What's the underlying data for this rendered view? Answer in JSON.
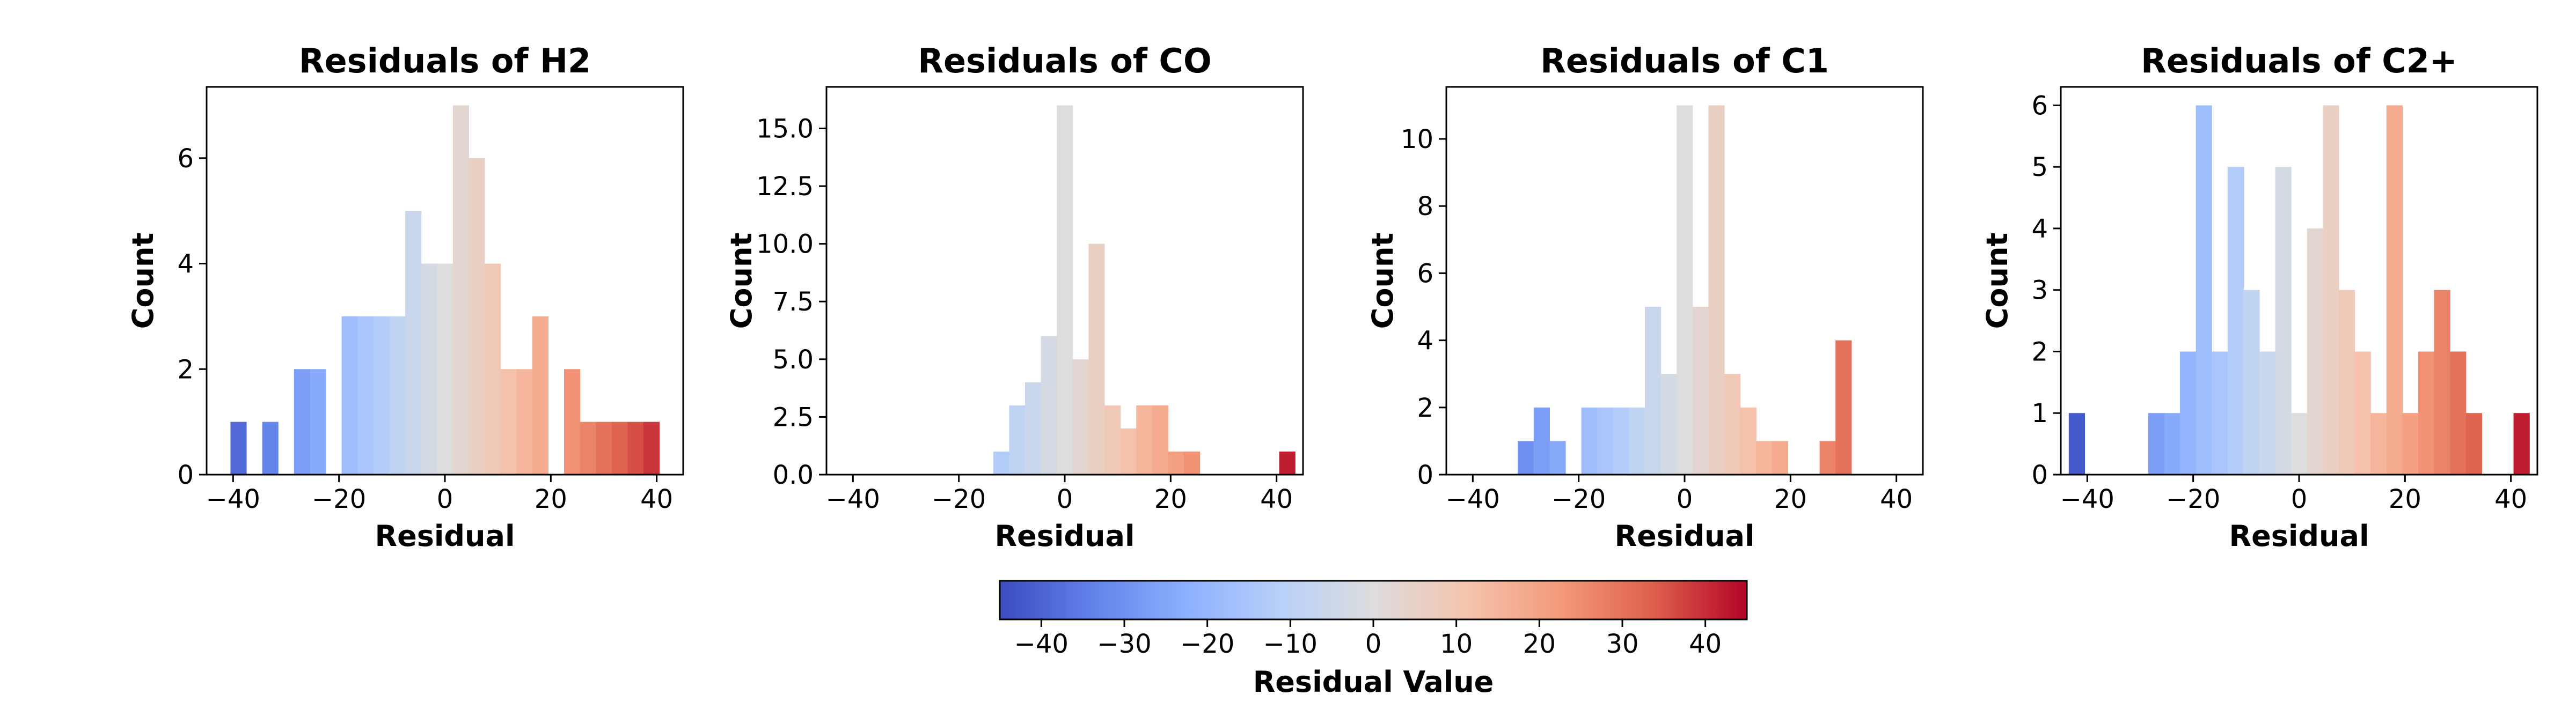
{
  "chart_data": [
    {
      "type": "bar",
      "title": "Residuals of H2",
      "xlabel": "Residual",
      "ylabel": "Count",
      "xlim": [
        -45,
        45
      ],
      "ylim": [
        0,
        7.35
      ],
      "xticks": [
        -40,
        -20,
        0,
        20,
        40
      ],
      "yticks": [
        0,
        2,
        4,
        6
      ],
      "ytick_labels": [
        "0",
        "2",
        "4",
        "6"
      ],
      "bin_width": 3,
      "bins": [
        {
          "x": -39.0,
          "count": 1
        },
        {
          "x": -33.0,
          "count": 1
        },
        {
          "x": -27.0,
          "count": 2
        },
        {
          "x": -24.0,
          "count": 2
        },
        {
          "x": -18.0,
          "count": 3
        },
        {
          "x": -15.0,
          "count": 3
        },
        {
          "x": -12.0,
          "count": 3
        },
        {
          "x": -9.0,
          "count": 3
        },
        {
          "x": -6.0,
          "count": 5
        },
        {
          "x": -3.0,
          "count": 4
        },
        {
          "x": 0.0,
          "count": 4
        },
        {
          "x": 3.0,
          "count": 7
        },
        {
          "x": 6.0,
          "count": 6
        },
        {
          "x": 9.0,
          "count": 4
        },
        {
          "x": 12.0,
          "count": 2
        },
        {
          "x": 15.0,
          "count": 2
        },
        {
          "x": 18.0,
          "count": 3
        },
        {
          "x": 24.0,
          "count": 2
        },
        {
          "x": 27.0,
          "count": 1
        },
        {
          "x": 30.0,
          "count": 1
        },
        {
          "x": 33.0,
          "count": 1
        },
        {
          "x": 36.0,
          "count": 1
        },
        {
          "x": 39.0,
          "count": 1
        }
      ]
    },
    {
      "type": "bar",
      "title": "Residuals of CO",
      "xlabel": "Residual",
      "ylabel": "Count",
      "xlim": [
        -45,
        45
      ],
      "ylim": [
        0,
        16.8
      ],
      "xticks": [
        -40,
        -20,
        0,
        20,
        40
      ],
      "yticks": [
        0,
        2.5,
        5,
        7.5,
        10,
        12.5,
        15
      ],
      "ytick_labels": [
        "0.0",
        "2.5",
        "5.0",
        "7.5",
        "10.0",
        "12.5",
        "15.0"
      ],
      "bin_width": 3,
      "bins": [
        {
          "x": -12.0,
          "count": 1
        },
        {
          "x": -9.0,
          "count": 3
        },
        {
          "x": -6.0,
          "count": 4
        },
        {
          "x": -3.0,
          "count": 6
        },
        {
          "x": 0.0,
          "count": 16
        },
        {
          "x": 3.0,
          "count": 5
        },
        {
          "x": 6.0,
          "count": 10
        },
        {
          "x": 9.0,
          "count": 3
        },
        {
          "x": 12.0,
          "count": 2
        },
        {
          "x": 15.0,
          "count": 3
        },
        {
          "x": 18.0,
          "count": 3
        },
        {
          "x": 21.0,
          "count": 1
        },
        {
          "x": 24.0,
          "count": 1
        },
        {
          "x": 42.0,
          "count": 1
        }
      ]
    },
    {
      "type": "bar",
      "title": "Residuals of C1",
      "xlabel": "Residual",
      "ylabel": "Count",
      "xlim": [
        -45,
        45
      ],
      "ylim": [
        0,
        11.55
      ],
      "xticks": [
        -40,
        -20,
        0,
        20,
        40
      ],
      "yticks": [
        0,
        2,
        4,
        6,
        8,
        10
      ],
      "ytick_labels": [
        "0",
        "2",
        "4",
        "6",
        "8",
        "10"
      ],
      "bin_width": 3,
      "bins": [
        {
          "x": -30.0,
          "count": 1
        },
        {
          "x": -27.0,
          "count": 2
        },
        {
          "x": -24.0,
          "count": 1
        },
        {
          "x": -18.0,
          "count": 2
        },
        {
          "x": -15.0,
          "count": 2
        },
        {
          "x": -12.0,
          "count": 2
        },
        {
          "x": -9.0,
          "count": 2
        },
        {
          "x": -6.0,
          "count": 5
        },
        {
          "x": -3.0,
          "count": 3
        },
        {
          "x": 0.0,
          "count": 11
        },
        {
          "x": 3.0,
          "count": 5
        },
        {
          "x": 6.0,
          "count": 11
        },
        {
          "x": 9.0,
          "count": 3
        },
        {
          "x": 12.0,
          "count": 2
        },
        {
          "x": 15.0,
          "count": 1
        },
        {
          "x": 18.0,
          "count": 1
        },
        {
          "x": 27.0,
          "count": 1
        },
        {
          "x": 30.0,
          "count": 4
        }
      ]
    },
    {
      "type": "bar",
      "title": "Residuals of C2+",
      "xlabel": "Residual",
      "ylabel": "Count",
      "xlim": [
        -45,
        45
      ],
      "ylim": [
        0,
        6.3
      ],
      "xticks": [
        -40,
        -20,
        0,
        20,
        40
      ],
      "yticks": [
        0,
        1,
        2,
        3,
        4,
        5,
        6
      ],
      "ytick_labels": [
        "0",
        "1",
        "2",
        "3",
        "4",
        "5",
        "6"
      ],
      "bin_width": 3,
      "bins": [
        {
          "x": -42.0,
          "count": 1
        },
        {
          "x": -27.0,
          "count": 1
        },
        {
          "x": -24.0,
          "count": 1
        },
        {
          "x": -21.0,
          "count": 2
        },
        {
          "x": -18.0,
          "count": 6
        },
        {
          "x": -15.0,
          "count": 2
        },
        {
          "x": -12.0,
          "count": 5
        },
        {
          "x": -9.0,
          "count": 3
        },
        {
          "x": -6.0,
          "count": 2
        },
        {
          "x": -3.0,
          "count": 5
        },
        {
          "x": 0.0,
          "count": 1
        },
        {
          "x": 3.0,
          "count": 4
        },
        {
          "x": 6.0,
          "count": 6
        },
        {
          "x": 9.0,
          "count": 3
        },
        {
          "x": 12.0,
          "count": 2
        },
        {
          "x": 15.0,
          "count": 1
        },
        {
          "x": 18.0,
          "count": 6
        },
        {
          "x": 21.0,
          "count": 1
        },
        {
          "x": 24.0,
          "count": 2
        },
        {
          "x": 27.0,
          "count": 3
        },
        {
          "x": 30.0,
          "count": 2
        },
        {
          "x": 33.0,
          "count": 1
        },
        {
          "x": 42.0,
          "count": 1
        }
      ]
    }
  ],
  "colorbar": {
    "label": "Residual Value",
    "colormap": "coolwarm",
    "range": [
      -45,
      45
    ],
    "ticks": [
      -40,
      -30,
      -20,
      -10,
      0,
      10,
      20,
      30,
      40
    ],
    "orientation": "horizontal",
    "placement": "bottom-center"
  }
}
